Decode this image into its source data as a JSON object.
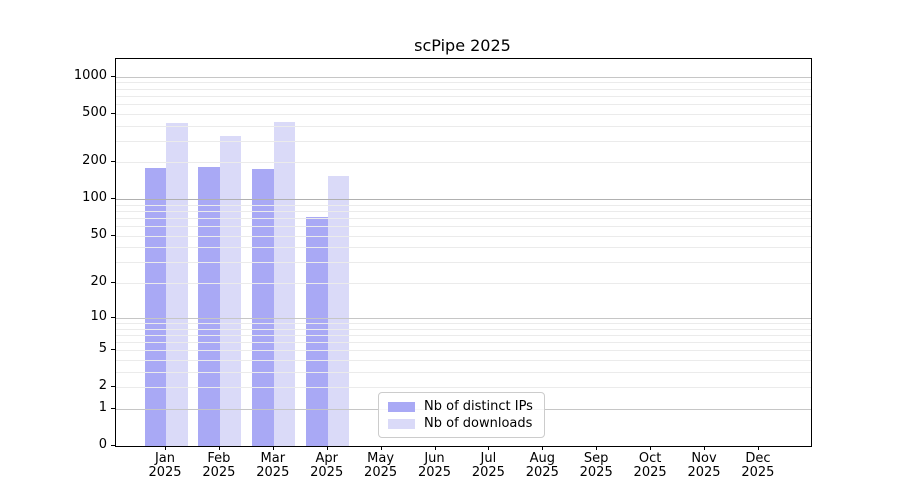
{
  "title": "scPipe 2025",
  "chart_data": {
    "type": "bar",
    "title": "scPipe 2025",
    "categories": [
      "Jan",
      "Feb",
      "Mar",
      "Apr",
      "May",
      "Jun",
      "Jul",
      "Aug",
      "Sep",
      "Oct",
      "Nov",
      "Dec"
    ],
    "category_year_label": "2025",
    "series": [
      {
        "name": "Nb of distinct IPs",
        "color": "#a9a9f5",
        "values": [
          180,
          185,
          177,
          71,
          0,
          0,
          0,
          0,
          0,
          0,
          0,
          0
        ]
      },
      {
        "name": "Nb of downloads",
        "color": "#dadaf8",
        "values": [
          420,
          330,
          425,
          155,
          0,
          0,
          0,
          0,
          0,
          0,
          0,
          0
        ]
      }
    ],
    "ytick_labels": [
      "0",
      "1",
      "2",
      "5",
      "10",
      "20",
      "50",
      "100",
      "200",
      "500",
      "1000"
    ],
    "ytick_values": [
      0,
      1,
      2,
      5,
      10,
      20,
      50,
      100,
      200,
      500,
      1000
    ],
    "yscale": "log10(1+x)",
    "ylim": [
      0,
      1400
    ],
    "xlabel": "",
    "ylabel": "",
    "grid": true,
    "legend_position": "lower center-right inside plot",
    "colors": {
      "axis": "#000000",
      "major_grid": "#c6c6c6",
      "minor_grid": "#ebebeb",
      "legend_border": "#cccccc",
      "background": "#ffffff"
    }
  }
}
